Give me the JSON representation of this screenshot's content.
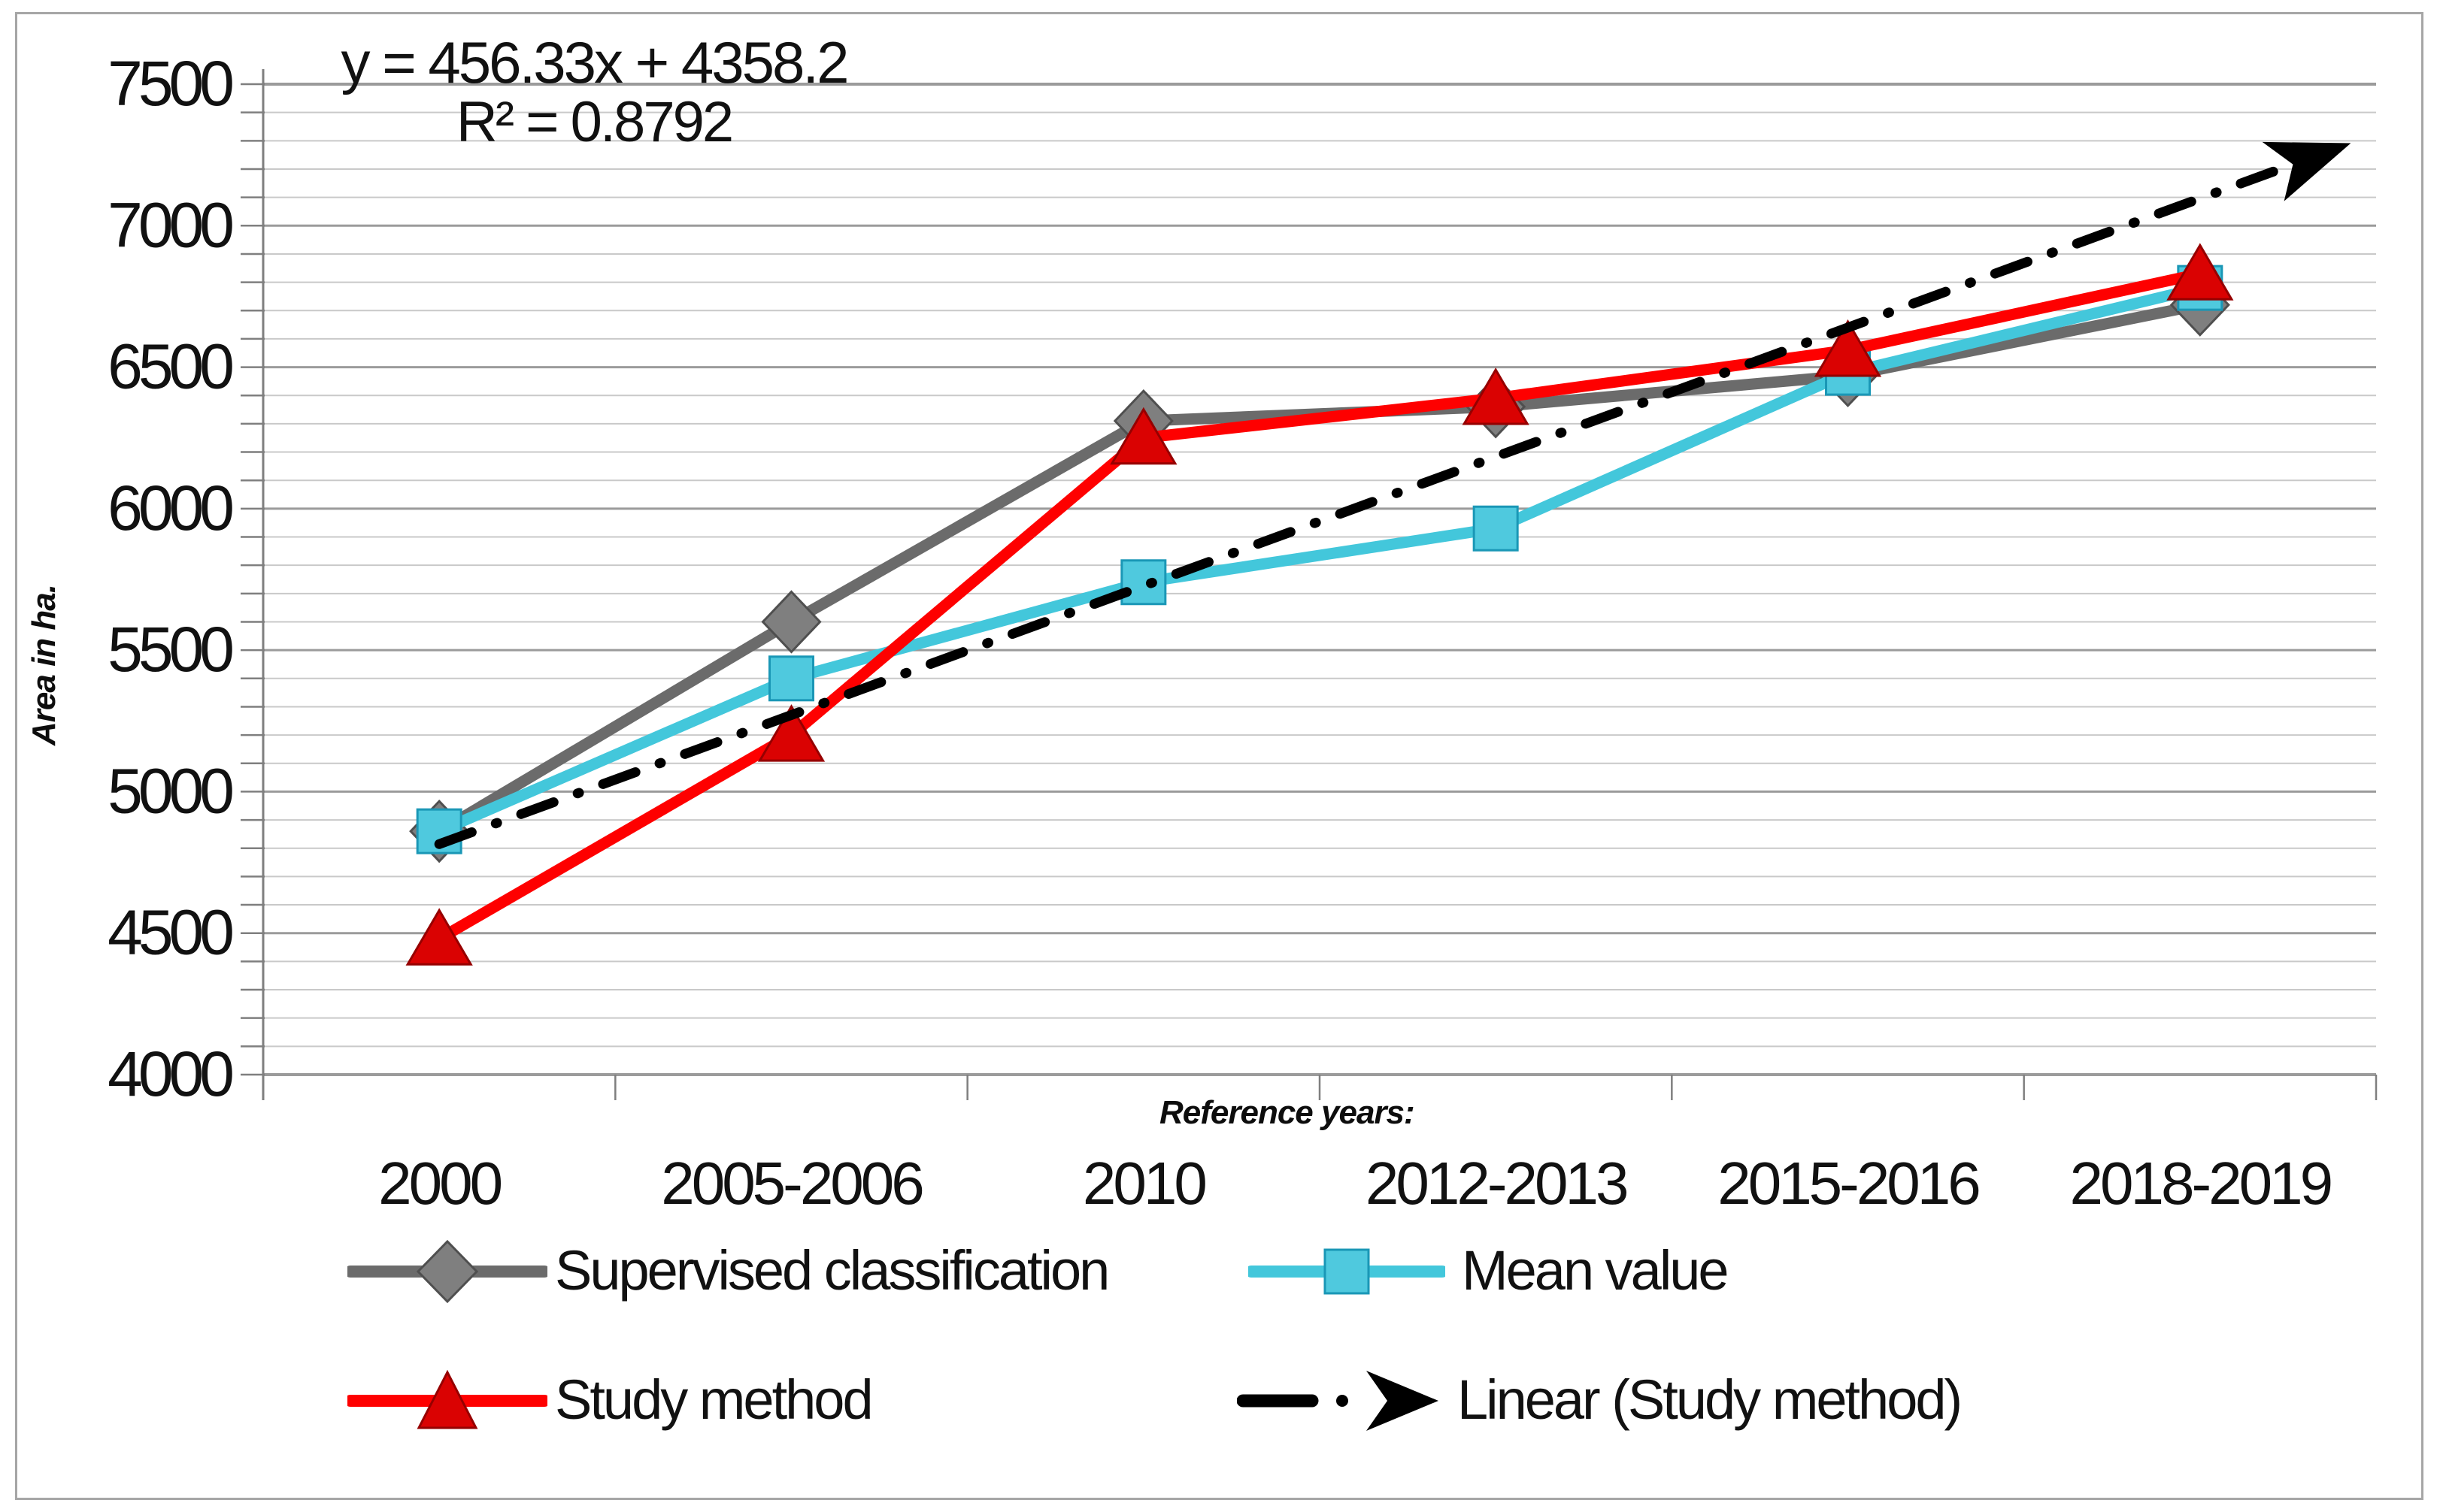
{
  "figure": {
    "background": "#ffffff",
    "border_color": "#a6a6a6"
  },
  "chart_data": {
    "type": "line",
    "categories": [
      "2000",
      "2005-2006",
      "2010",
      "2012-2013",
      "2015-2016",
      "2018-2019"
    ],
    "series": [
      {
        "name": "Supervised classification",
        "marker": "diamond",
        "line_color": "#6b6b6b",
        "marker_fill": "#7f7f7f",
        "marker_edge": "#4f4f4f",
        "values": [
          4860,
          5600,
          6310,
          6360,
          6470,
          6720
        ]
      },
      {
        "name": "Mean value",
        "marker": "square",
        "line_color": "#43c7db",
        "marker_fill": "#4fc9de",
        "marker_edge": "#1a97b6",
        "values": [
          4860,
          5400,
          5740,
          5930,
          6480,
          6780
        ]
      },
      {
        "name": "Study method",
        "marker": "triangle",
        "line_color": "#fe0000",
        "marker_fill": "#da0202",
        "marker_edge": "#960000",
        "values": [
          4480,
          5200,
          6250,
          6390,
          6560,
          6830
        ]
      }
    ],
    "trendline": {
      "name": "Linear (Study method)",
      "color": "#000000",
      "style": "dash-dot-arrow",
      "slope": 456.33,
      "intercept": 4358.2,
      "equation": "y = 456.33x + 4358.2",
      "r_squared": "R² = 0.8792"
    },
    "xlabel": "Reference years:",
    "ylabel": "Area in ha.",
    "ylim": [
      4000,
      7500
    ],
    "y_major_step": 500,
    "y_minor_step": 100,
    "y_tick_labels": [
      "4000",
      "4500",
      "5000",
      "5500",
      "6000",
      "6500",
      "7000",
      "7500"
    ],
    "grid": true,
    "legend_position": "bottom"
  },
  "colors": {
    "grid_minor": "#c9c9c9",
    "grid_major": "#9b9b9b",
    "axis": "#7f7f7f",
    "text": "#111111"
  }
}
